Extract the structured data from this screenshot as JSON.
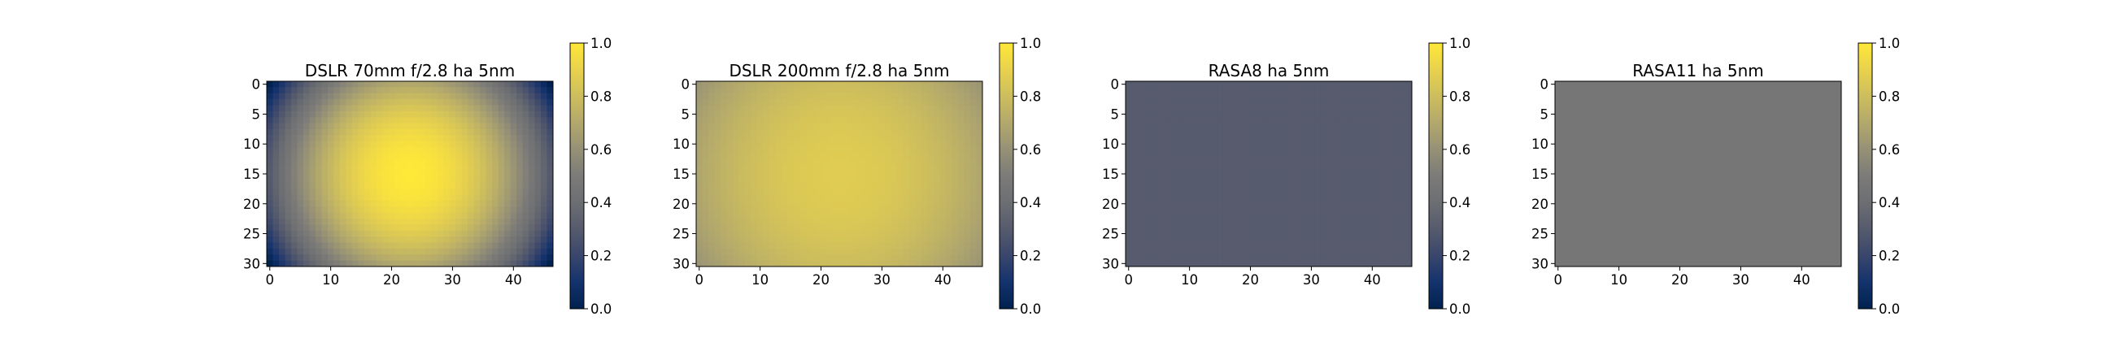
{
  "chart_data": [
    {
      "type": "heatmap",
      "title": "DSLR 70mm f/2.8 ha 5nm",
      "colormap": "cividis",
      "x_range": [
        0,
        46
      ],
      "y_range": [
        0,
        30
      ],
      "x_ticks": [
        "0",
        "10",
        "20",
        "30",
        "40"
      ],
      "y_ticks": [
        "0",
        "5",
        "10",
        "15",
        "20",
        "25",
        "30"
      ],
      "colorbar_ticks": [
        "0.0",
        "0.2",
        "0.4",
        "0.6",
        "0.8",
        "1.0"
      ],
      "vignetting": {
        "center_x": 23,
        "center_y": 15,
        "center_value": 1.0,
        "corner_value": 0.0,
        "profile": "radial"
      }
    },
    {
      "type": "heatmap",
      "title": "DSLR 200mm f/2.8 ha 5nm",
      "colormap": "cividis",
      "x_range": [
        0,
        46
      ],
      "y_range": [
        0,
        30
      ],
      "x_ticks": [
        "0",
        "10",
        "20",
        "30",
        "40"
      ],
      "y_ticks": [
        "0",
        "5",
        "10",
        "15",
        "20",
        "25",
        "30"
      ],
      "colorbar_ticks": [
        "0.0",
        "0.2",
        "0.4",
        "0.6",
        "0.8",
        "1.0"
      ],
      "vignetting": {
        "center_x": 23,
        "center_y": 15,
        "center_value": 0.87,
        "corner_value": 0.62,
        "profile": "radial"
      }
    },
    {
      "type": "heatmap",
      "title": "RASA8 ha 5nm",
      "colormap": "cividis",
      "x_range": [
        0,
        46
      ],
      "y_range": [
        0,
        30
      ],
      "x_ticks": [
        "0",
        "10",
        "20",
        "30",
        "40"
      ],
      "y_ticks": [
        "0",
        "5",
        "10",
        "15",
        "20",
        "25",
        "30"
      ],
      "colorbar_ticks": [
        "0.0",
        "0.2",
        "0.4",
        "0.6",
        "0.8",
        "1.0"
      ],
      "vignetting": {
        "center_x": 23,
        "center_y": 15,
        "center_value": 0.3,
        "corner_value": 0.3,
        "profile": "uniform"
      }
    },
    {
      "type": "heatmap",
      "title": "RASA11 ha 5nm",
      "colormap": "cividis",
      "x_range": [
        0,
        46
      ],
      "y_range": [
        0,
        30
      ],
      "x_ticks": [
        "0",
        "10",
        "20",
        "30",
        "40"
      ],
      "y_ticks": [
        "0",
        "5",
        "10",
        "15",
        "20",
        "25",
        "30"
      ],
      "colorbar_ticks": [
        "0.0",
        "0.2",
        "0.4",
        "0.6",
        "0.8",
        "1.0"
      ],
      "vignetting": {
        "center_x": 23,
        "center_y": 15,
        "center_value": 0.46,
        "corner_value": 0.46,
        "profile": "uniform"
      }
    }
  ]
}
